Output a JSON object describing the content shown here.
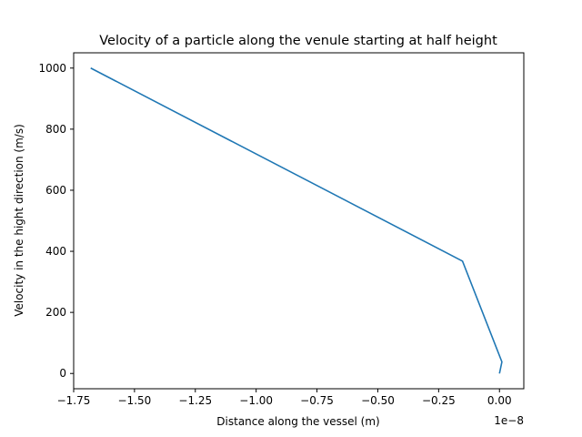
{
  "chart_data": {
    "type": "line",
    "title": "Velocity of a particle along the venule starting at half height",
    "xlabel": "Distance along the vessel (m)",
    "ylabel": "Velocity in the hight direction (m/s)",
    "x_offset_label": "1e−8",
    "xlim": [
      -1.75,
      0.1
    ],
    "ylim": [
      -50,
      1050
    ],
    "xticks": [
      -1.75,
      -1.5,
      -1.25,
      -1.0,
      -0.75,
      -0.5,
      -0.25,
      0.0
    ],
    "xtick_labels": [
      "−1.75",
      "−1.50",
      "−1.25",
      "−1.00",
      "−0.75",
      "−0.50",
      "−0.25",
      "0.00"
    ],
    "yticks": [
      0,
      200,
      400,
      600,
      800,
      1000
    ],
    "ytick_labels": [
      "0",
      "200",
      "400",
      "600",
      "800",
      "1000"
    ],
    "grid": false,
    "series": [
      {
        "color": "#1f77b4",
        "x": [
          -1.68,
          -0.152,
          0.01,
          0.0
        ],
        "y": [
          1000,
          368,
          38,
          0
        ]
      }
    ]
  }
}
